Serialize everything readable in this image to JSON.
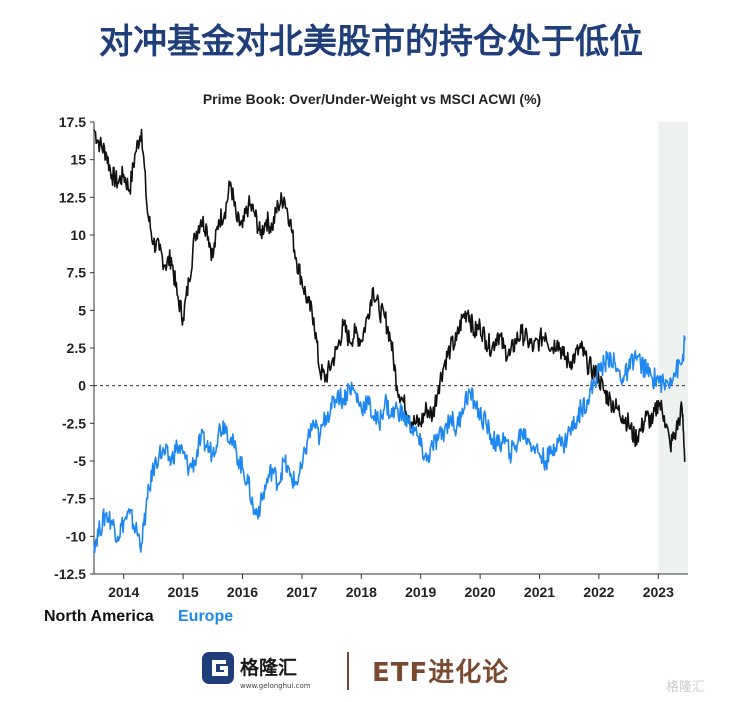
{
  "headline": "对冲基金对北美股市的持仓处于低位",
  "footer": {
    "logo_text": "格隆汇",
    "logo_url_text": "www.gelonghui.com",
    "etf_text": "ETF进化论",
    "watermark_text": "格隆汇"
  },
  "colors": {
    "north_america": "#111111",
    "europe": "#1e87f0",
    "headline": "#1f3e7a",
    "shade": "#eef2ee"
  },
  "chart_data": {
    "type": "line",
    "title": "Prime Book: Over/Under-Weight vs MSCI ACWI (%)",
    "xlabel": "",
    "ylabel": "",
    "x_range": [
      2013.5,
      2023.5
    ],
    "ylim": [
      -12.5,
      17.5
    ],
    "y_ticks": [
      17.5,
      15,
      12.5,
      10,
      7.5,
      5,
      2.5,
      0,
      -2.5,
      -5,
      -7.5,
      -10,
      -12.5
    ],
    "y_tick_labels": [
      "17.5",
      "15",
      "12.5",
      "10",
      "7.5",
      "5",
      "2.5",
      "0",
      "-2.5",
      "-5",
      "-7.5",
      "-10",
      "-12.5"
    ],
    "x_ticks": [
      2014,
      2015,
      2016,
      2017,
      2018,
      2019,
      2020,
      2021,
      2022,
      2023
    ],
    "x_tick_labels": [
      "2014",
      "2015",
      "2016",
      "2017",
      "2018",
      "2019",
      "2020",
      "2021",
      "2022",
      "2023"
    ],
    "reference_line": 0,
    "grid": false,
    "shaded_region": [
      2023.0,
      2023.5
    ],
    "legend": {
      "placement": "bottom-left"
    },
    "series": [
      {
        "name": "North America",
        "color": "#111111",
        "x": [
          2013.5,
          2013.6,
          2013.7,
          2013.8,
          2013.9,
          2014.0,
          2014.1,
          2014.2,
          2014.3,
          2014.4,
          2014.5,
          2014.6,
          2014.7,
          2014.8,
          2014.9,
          2015.0,
          2015.1,
          2015.2,
          2015.3,
          2015.4,
          2015.5,
          2015.6,
          2015.7,
          2015.8,
          2015.9,
          2016.0,
          2016.1,
          2016.2,
          2016.3,
          2016.4,
          2016.5,
          2016.6,
          2016.7,
          2016.8,
          2016.9,
          2017.0,
          2017.1,
          2017.2,
          2017.3,
          2017.4,
          2017.5,
          2017.6,
          2017.7,
          2017.8,
          2017.9,
          2018.0,
          2018.1,
          2018.2,
          2018.3,
          2018.4,
          2018.5,
          2018.6,
          2018.7,
          2018.8,
          2018.9,
          2019.0,
          2019.1,
          2019.2,
          2019.3,
          2019.4,
          2019.5,
          2019.6,
          2019.7,
          2019.8,
          2019.9,
          2020.0,
          2020.1,
          2020.2,
          2020.3,
          2020.4,
          2020.5,
          2020.6,
          2020.7,
          2020.8,
          2020.9,
          2021.0,
          2021.1,
          2021.2,
          2021.3,
          2021.4,
          2021.5,
          2021.6,
          2021.7,
          2021.8,
          2021.9,
          2022.0,
          2022.1,
          2022.2,
          2022.3,
          2022.4,
          2022.5,
          2022.6,
          2022.7,
          2022.8,
          2022.9,
          2023.0,
          2023.1,
          2023.2,
          2023.3,
          2023.4,
          2023.45
        ],
        "values": [
          17.0,
          16.0,
          15.5,
          14.0,
          13.5,
          14.0,
          13.0,
          15.5,
          17.0,
          11.5,
          9.5,
          9.0,
          8.0,
          8.5,
          6.0,
          4.5,
          7.0,
          10.0,
          11.0,
          10.5,
          8.5,
          11.0,
          11.5,
          13.5,
          11.0,
          10.5,
          12.0,
          11.5,
          10.0,
          11.0,
          10.5,
          12.0,
          12.5,
          11.0,
          8.5,
          7.0,
          5.5,
          4.5,
          1.0,
          0.5,
          1.5,
          2.5,
          4.0,
          3.0,
          3.5,
          3.0,
          4.5,
          6.5,
          5.0,
          4.5,
          3.0,
          0.0,
          -1.0,
          -2.0,
          -2.5,
          -2.5,
          -1.5,
          -2.0,
          0.0,
          1.5,
          2.5,
          3.0,
          4.5,
          5.0,
          3.5,
          4.0,
          3.0,
          2.5,
          3.5,
          2.5,
          2.0,
          3.0,
          3.5,
          3.0,
          2.5,
          3.0,
          3.5,
          2.5,
          3.0,
          2.0,
          1.5,
          2.0,
          2.5,
          1.5,
          1.0,
          0.5,
          -0.5,
          -1.0,
          -1.5,
          -2.0,
          -2.5,
          -3.5,
          -3.0,
          -2.0,
          -2.5,
          -1.0,
          -2.0,
          -4.0,
          -3.0,
          -1.5,
          -5.0
        ]
      },
      {
        "name": "Europe",
        "color": "#1e87f0",
        "x": [
          2013.5,
          2013.6,
          2013.7,
          2013.8,
          2013.9,
          2014.0,
          2014.1,
          2014.2,
          2014.3,
          2014.4,
          2014.5,
          2014.6,
          2014.7,
          2014.8,
          2014.9,
          2015.0,
          2015.1,
          2015.2,
          2015.3,
          2015.4,
          2015.5,
          2015.6,
          2015.7,
          2015.8,
          2015.9,
          2016.0,
          2016.1,
          2016.2,
          2016.3,
          2016.4,
          2016.5,
          2016.6,
          2016.7,
          2016.8,
          2016.9,
          2017.0,
          2017.1,
          2017.2,
          2017.3,
          2017.4,
          2017.5,
          2017.6,
          2017.7,
          2017.8,
          2017.9,
          2018.0,
          2018.1,
          2018.2,
          2018.3,
          2018.4,
          2018.5,
          2018.6,
          2018.7,
          2018.8,
          2018.9,
          2019.0,
          2019.1,
          2019.2,
          2019.3,
          2019.4,
          2019.5,
          2019.6,
          2019.7,
          2019.8,
          2019.9,
          2020.0,
          2020.1,
          2020.2,
          2020.3,
          2020.4,
          2020.5,
          2020.6,
          2020.7,
          2020.8,
          2020.9,
          2021.0,
          2021.1,
          2021.2,
          2021.3,
          2021.4,
          2021.5,
          2021.6,
          2021.7,
          2021.8,
          2021.9,
          2022.0,
          2022.1,
          2022.2,
          2022.3,
          2022.4,
          2022.5,
          2022.6,
          2022.7,
          2022.8,
          2022.9,
          2023.0,
          2023.1,
          2023.2,
          2023.3,
          2023.4,
          2023.45
        ],
        "values": [
          -10.5,
          -9.5,
          -8.5,
          -9.0,
          -10.0,
          -9.0,
          -8.5,
          -9.5,
          -10.5,
          -7.5,
          -5.5,
          -4.5,
          -4.5,
          -5.0,
          -4.0,
          -4.5,
          -5.5,
          -5.0,
          -3.5,
          -4.0,
          -4.5,
          -3.0,
          -2.5,
          -3.5,
          -4.5,
          -5.5,
          -6.5,
          -8.5,
          -8.0,
          -6.5,
          -5.5,
          -6.5,
          -5.0,
          -6.0,
          -6.5,
          -5.5,
          -3.5,
          -2.5,
          -3.5,
          -2.0,
          -1.5,
          -0.5,
          -1.0,
          0.0,
          -0.5,
          -1.5,
          -1.0,
          -2.0,
          -2.5,
          -1.0,
          -2.0,
          -1.5,
          -2.0,
          -2.5,
          -3.0,
          -4.0,
          -5.0,
          -4.0,
          -3.5,
          -3.0,
          -2.0,
          -3.0,
          -1.5,
          -0.5,
          -1.0,
          -2.0,
          -2.5,
          -3.5,
          -4.0,
          -3.5,
          -4.5,
          -4.0,
          -3.0,
          -3.5,
          -4.0,
          -4.5,
          -5.0,
          -4.5,
          -3.5,
          -4.0,
          -3.0,
          -2.5,
          -1.5,
          -1.0,
          0.0,
          1.0,
          1.5,
          2.0,
          1.0,
          0.5,
          1.0,
          2.0,
          1.5,
          1.0,
          0.5,
          0.5,
          0.0,
          0.5,
          1.0,
          1.5,
          3.0
        ]
      }
    ]
  }
}
